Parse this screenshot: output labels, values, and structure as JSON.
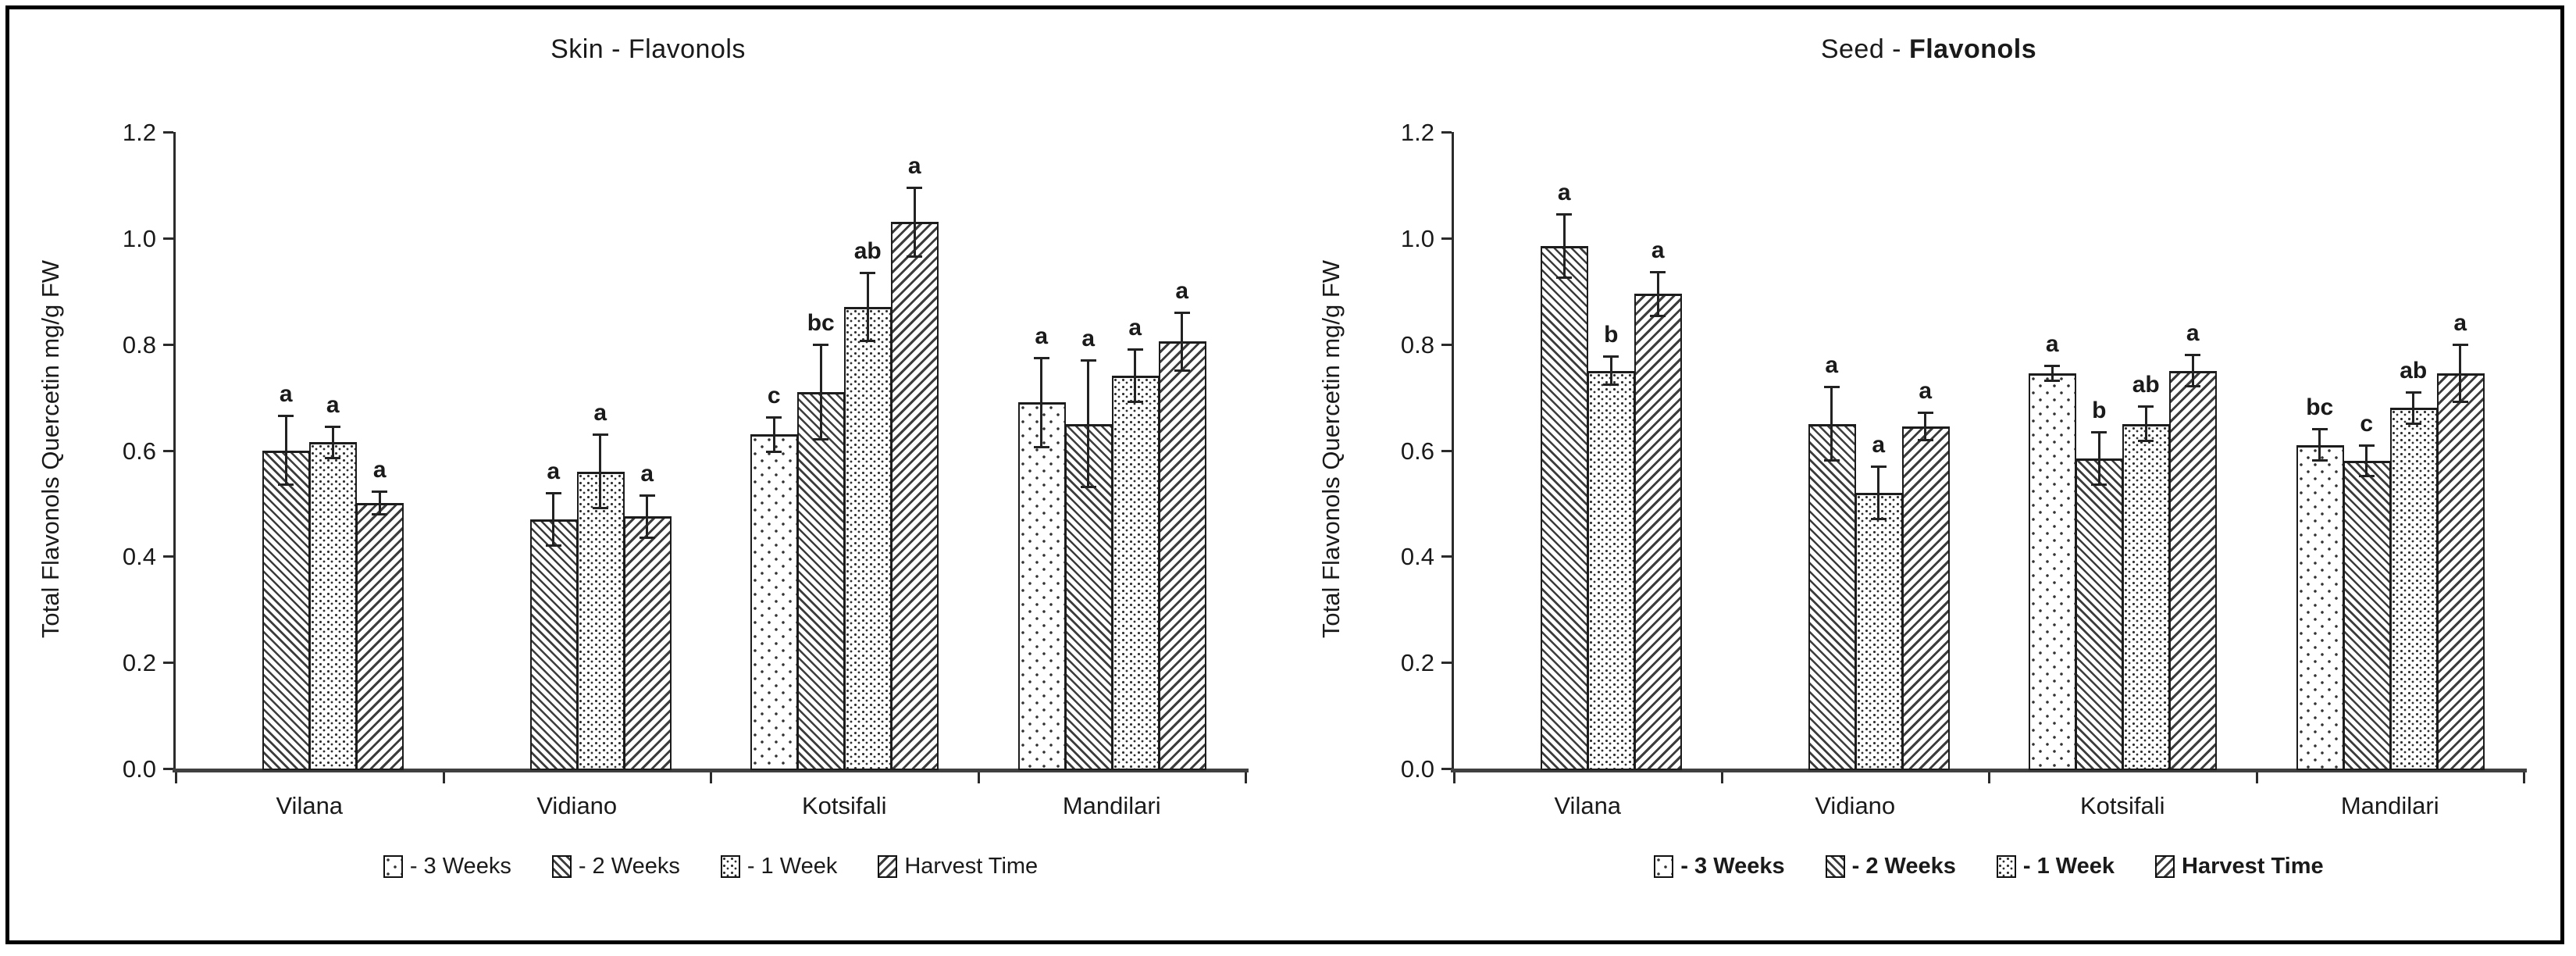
{
  "figure": {
    "background": "#ffffff",
    "border_color": "#000000"
  },
  "chart_data": [
    {
      "type": "bar",
      "title_normal": "Skin - Flavonols",
      "title_bold": "",
      "ylabel": "Total Flavonols Quercetin mg/g FW",
      "ylim": [
        0.0,
        1.2
      ],
      "ytick_labels": [
        "0.0",
        "0.2",
        "0.4",
        "0.6",
        "0.8",
        "1.0",
        "1.2"
      ],
      "grid": false,
      "legend_position": "bottom",
      "legend_bold": false,
      "categories": [
        "Vilana",
        "Vidiano",
        "Kotsifali",
        "Mandilari"
      ],
      "series": [
        {
          "name": "- 3 Weeks",
          "pattern": "sparse-dots",
          "values": [
            null,
            null,
            0.63,
            0.69
          ],
          "errors": [
            null,
            null,
            0.033,
            0.085
          ],
          "letters": [
            null,
            null,
            "c",
            "a"
          ]
        },
        {
          "name": "- 2 Weeks",
          "pattern": "backslash-hatch",
          "values": [
            0.6,
            0.47,
            0.71,
            0.65
          ],
          "errors": [
            0.065,
            0.05,
            0.09,
            0.12
          ],
          "letters": [
            "a",
            "a",
            "bc",
            "a"
          ]
        },
        {
          "name": "- 1 Week",
          "pattern": "dense-dots",
          "values": [
            0.615,
            0.56,
            0.87,
            0.74
          ],
          "errors": [
            0.03,
            0.07,
            0.065,
            0.05
          ],
          "letters": [
            "a",
            "a",
            "ab",
            "a"
          ]
        },
        {
          "name": "Harvest Time",
          "pattern": "slash-hatch",
          "values": [
            0.5,
            0.475,
            1.03,
            0.805
          ],
          "errors": [
            0.022,
            0.04,
            0.065,
            0.055
          ],
          "letters": [
            "a",
            "a",
            "a",
            "a"
          ]
        }
      ]
    },
    {
      "type": "bar",
      "title_normal": "Seed - ",
      "title_bold": "Flavonols",
      "ylabel": "Total Flavonols Quercetin mg/g FW",
      "ylim": [
        0.0,
        1.2
      ],
      "ytick_labels": [
        "0.0",
        "0.2",
        "0.4",
        "0.6",
        "0.8",
        "1.0",
        "1.2"
      ],
      "grid": false,
      "legend_position": "bottom",
      "legend_bold": true,
      "categories": [
        "Vilana",
        "Vidiano",
        "Kotsifali",
        "Mandilari"
      ],
      "series": [
        {
          "name": "- 3 Weeks",
          "pattern": "sparse-dots",
          "values": [
            null,
            null,
            0.745,
            0.61
          ],
          "errors": [
            null,
            null,
            0.015,
            0.03
          ],
          "letters": [
            null,
            null,
            "a",
            "bc"
          ]
        },
        {
          "name": "- 2 Weeks",
          "pattern": "backslash-hatch",
          "values": [
            0.985,
            0.65,
            0.585,
            0.58
          ],
          "errors": [
            0.06,
            0.07,
            0.05,
            0.03
          ],
          "letters": [
            "a",
            "a",
            "b",
            "c"
          ]
        },
        {
          "name": "- 1 Week",
          "pattern": "dense-dots",
          "values": [
            0.75,
            0.52,
            0.65,
            0.68
          ],
          "errors": [
            0.027,
            0.05,
            0.033,
            0.03
          ],
          "letters": [
            "b",
            "a",
            "ab",
            "ab"
          ]
        },
        {
          "name": "Harvest Time",
          "pattern": "slash-hatch",
          "values": [
            0.895,
            0.645,
            0.75,
            0.745
          ],
          "errors": [
            0.042,
            0.026,
            0.03,
            0.055
          ],
          "letters": [
            "a",
            "a",
            "a",
            "a"
          ]
        }
      ]
    }
  ]
}
